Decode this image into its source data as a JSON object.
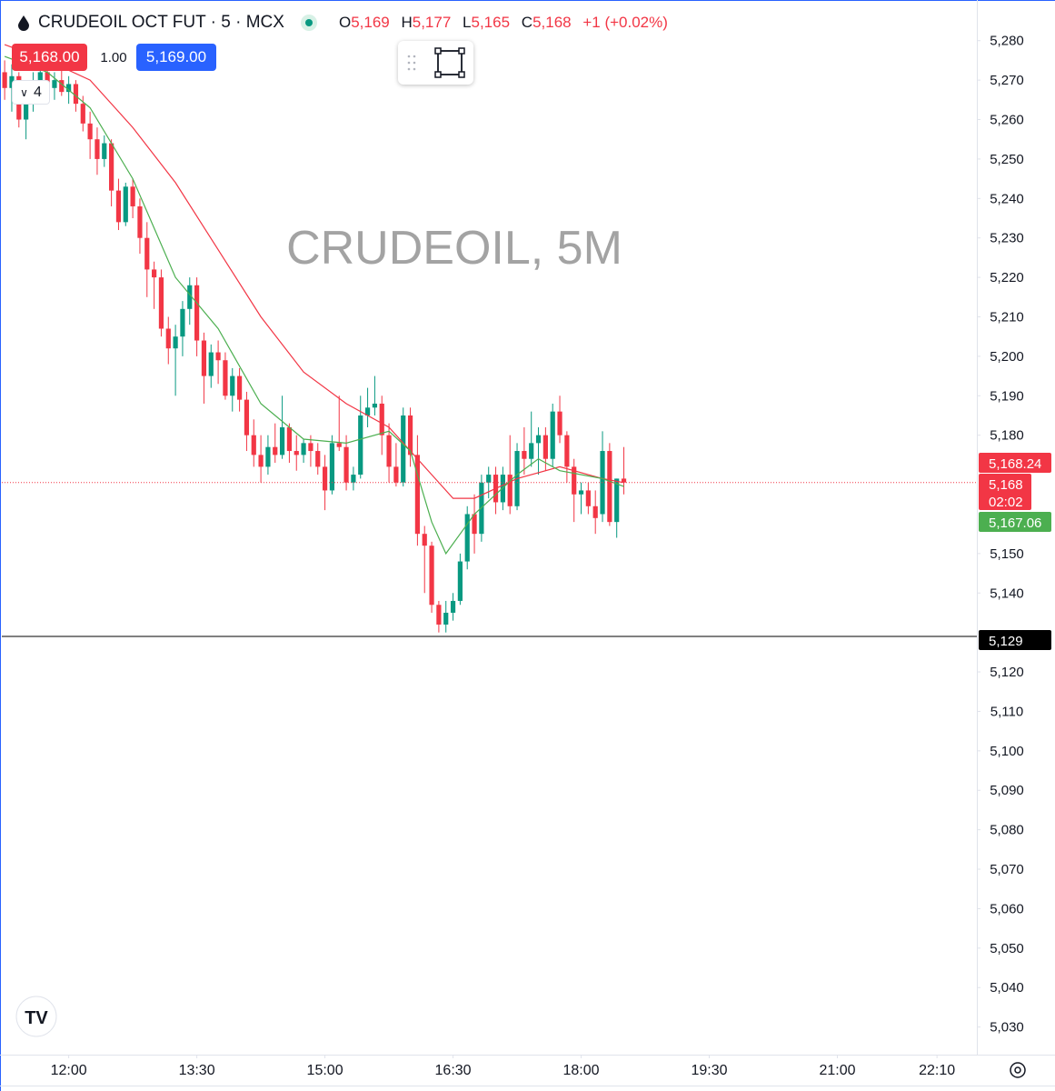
{
  "header": {
    "symbol": "CRUDEOIL OCT FUT · 5 · MCX",
    "ohlc": [
      {
        "label": "O",
        "value": "5,169"
      },
      {
        "label": "H",
        "value": "5,177"
      },
      {
        "label": "L",
        "value": "5,165"
      },
      {
        "label": "C",
        "value": "5,168"
      }
    ],
    "change": "+1 (+0.02%)"
  },
  "trade": {
    "sell": "5,168.00",
    "quantity": "1.00",
    "buy": "5,169.00"
  },
  "indicator_count": "4",
  "chart_data": {
    "type": "candlestick",
    "watermark": "CRUDEOIL, 5M",
    "x": [
      "11:15",
      "11:20",
      "11:25",
      "11:30",
      "11:35",
      "11:40",
      "11:45",
      "11:50",
      "11:55",
      "12:00",
      "12:05",
      "12:10",
      "12:15",
      "12:20",
      "12:25",
      "12:30",
      "12:35",
      "12:40",
      "12:45",
      "12:50",
      "12:55",
      "13:00",
      "13:05",
      "13:10",
      "13:15",
      "13:20",
      "13:25",
      "13:30",
      "13:35",
      "13:40",
      "13:45",
      "13:50",
      "13:55",
      "14:00",
      "14:05",
      "14:10",
      "14:15",
      "14:20",
      "14:25",
      "14:30",
      "14:35",
      "14:40",
      "14:45",
      "14:50",
      "14:55",
      "15:00",
      "15:05",
      "15:10",
      "15:15",
      "15:20",
      "15:25",
      "15:30",
      "15:35",
      "15:40",
      "15:45",
      "15:50",
      "15:55",
      "16:00",
      "16:05",
      "16:10",
      "16:15",
      "16:20",
      "16:25",
      "16:30",
      "16:35",
      "16:40",
      "16:45",
      "16:50",
      "16:55",
      "17:00",
      "17:05",
      "17:10",
      "17:15",
      "17:20",
      "17:25",
      "17:30",
      "17:35",
      "17:40",
      "17:45",
      "17:50",
      "17:55",
      "18:00",
      "18:05",
      "18:10",
      "18:15",
      "18:20",
      "18:25",
      "18:30"
    ],
    "open": [
      5272,
      5268,
      5271,
      5260,
      5264,
      5270,
      5272,
      5268,
      5270,
      5267,
      5269,
      5264,
      5259,
      5255,
      5250,
      5254,
      5242,
      5234,
      5243,
      5238,
      5230,
      5222,
      5220,
      5207,
      5202,
      5205,
      5212,
      5218,
      5204,
      5195,
      5201,
      5199,
      5190,
      5195,
      5189,
      5180,
      5175,
      5172,
      5177,
      5175,
      5182,
      5176,
      5175,
      5178,
      5176,
      5172,
      5166,
      5178,
      5177,
      5168,
      5170,
      5185,
      5187,
      5188,
      5180,
      5172,
      5168,
      5185,
      5175,
      5155,
      5152,
      5137,
      5132,
      5135,
      5138,
      5148,
      5160,
      5155,
      5168,
      5170,
      5163,
      5170,
      5162,
      5176,
      5174,
      5178,
      5180,
      5174,
      5186,
      5180,
      5172,
      5165,
      5166,
      5162,
      5160,
      5176,
      5158,
      5169
    ],
    "high": [
      5275,
      5274,
      5272,
      5266,
      5272,
      5275,
      5274,
      5272,
      5273,
      5271,
      5270,
      5266,
      5262,
      5258,
      5256,
      5255,
      5245,
      5244,
      5245,
      5240,
      5234,
      5224,
      5222,
      5210,
      5208,
      5214,
      5220,
      5220,
      5206,
      5203,
      5204,
      5201,
      5197,
      5197,
      5191,
      5184,
      5180,
      5180,
      5183,
      5190,
      5183,
      5180,
      5179,
      5180,
      5178,
      5175,
      5180,
      5190,
      5180,
      5172,
      5190,
      5192,
      5195,
      5190,
      5183,
      5178,
      5187,
      5187,
      5180,
      5157,
      5153,
      5138,
      5138,
      5140,
      5150,
      5162,
      5165,
      5170,
      5172,
      5172,
      5172,
      5180,
      5178,
      5182,
      5186,
      5182,
      5182,
      5188,
      5190,
      5181,
      5174,
      5168,
      5168,
      5166,
      5181,
      5178,
      5169,
      5177
    ],
    "low": [
      5265,
      5262,
      5258,
      5255,
      5262,
      5266,
      5266,
      5265,
      5266,
      5264,
      5262,
      5257,
      5250,
      5246,
      5248,
      5238,
      5232,
      5233,
      5235,
      5226,
      5215,
      5212,
      5205,
      5198,
      5190,
      5200,
      5208,
      5200,
      5188,
      5192,
      5193,
      5189,
      5186,
      5186,
      5176,
      5172,
      5168,
      5170,
      5173,
      5174,
      5173,
      5171,
      5173,
      5172,
      5170,
      5161,
      5165,
      5176,
      5166,
      5166,
      5169,
      5182,
      5185,
      5175,
      5168,
      5167,
      5167,
      5172,
      5152,
      5140,
      5135,
      5130,
      5130,
      5133,
      5137,
      5146,
      5150,
      5153,
      5164,
      5160,
      5161,
      5160,
      5161,
      5170,
      5172,
      5170,
      5171,
      5172,
      5178,
      5168,
      5158,
      5160,
      5160,
      5155,
      5158,
      5157,
      5154,
      5165
    ],
    "close": [
      5268,
      5271,
      5260,
      5264,
      5270,
      5272,
      5268,
      5270,
      5267,
      5269,
      5264,
      5259,
      5255,
      5250,
      5254,
      5242,
      5234,
      5243,
      5238,
      5230,
      5222,
      5220,
      5207,
      5202,
      5205,
      5212,
      5218,
      5204,
      5195,
      5201,
      5199,
      5190,
      5195,
      5189,
      5180,
      5175,
      5172,
      5177,
      5175,
      5182,
      5176,
      5175,
      5178,
      5176,
      5172,
      5166,
      5178,
      5177,
      5168,
      5170,
      5185,
      5187,
      5188,
      5180,
      5172,
      5168,
      5185,
      5175,
      5155,
      5152,
      5137,
      5132,
      5135,
      5138,
      5148,
      5160,
      5155,
      5168,
      5170,
      5163,
      5170,
      5162,
      5176,
      5174,
      5178,
      5180,
      5174,
      5186,
      5180,
      5172,
      5165,
      5166,
      5162,
      5159,
      5176,
      5158,
      5169,
      5168
    ],
    "up_color": "#089981",
    "down_color": "#f23645",
    "series": [
      {
        "color": "#f23645",
        "x": [
          "11:15",
          "11:45",
          "12:15",
          "12:45",
          "13:15",
          "13:45",
          "14:15",
          "14:45",
          "15:15",
          "15:45",
          "16:15",
          "16:30",
          "16:45",
          "17:15",
          "17:45",
          "18:15",
          "18:30"
        ],
        "values": [
          5279,
          5275,
          5270,
          5258,
          5244,
          5227,
          5210,
          5196,
          5188,
          5182,
          5170,
          5164,
          5164,
          5169,
          5172,
          5169,
          5168
        ]
      },
      {
        "color": "#4caf50",
        "x": [
          "11:15",
          "11:45",
          "12:15",
          "12:45",
          "13:15",
          "13:45",
          "14:15",
          "14:45",
          "15:15",
          "15:45",
          "16:00",
          "16:15",
          "16:25",
          "16:45",
          "17:15",
          "17:30",
          "17:45",
          "18:15",
          "18:30"
        ],
        "values": [
          5276,
          5272,
          5263,
          5245,
          5220,
          5207,
          5188,
          5179,
          5178,
          5181,
          5176,
          5158,
          5150,
          5160,
          5170,
          5174,
          5171,
          5169,
          5167
        ]
      }
    ],
    "price_lines": [
      {
        "value": 5168.24,
        "label": "5,168.24",
        "color": "#f23645"
      },
      {
        "value": 5168,
        "label": "5,168",
        "countdown": "02:02",
        "color": "#f23645"
      },
      {
        "value": 5167.06,
        "label": "5,167.06",
        "color": "#4caf50"
      },
      {
        "value": 5129,
        "label": "5,129",
        "color": "#000000"
      }
    ],
    "xlim": [
      "11:13",
      "22:38"
    ],
    "xticks": [
      "12:00",
      "13:30",
      "15:00",
      "16:30",
      "18:00",
      "19:30",
      "21:00",
      "22:10"
    ],
    "ylim": [
      5023,
      5288
    ],
    "yticks": [
      {
        "value": 5280,
        "label": "5,280"
      },
      {
        "value": 5270,
        "label": "5,270"
      },
      {
        "value": 5260,
        "label": "5,260"
      },
      {
        "value": 5250,
        "label": "5,250"
      },
      {
        "value": 5240,
        "label": "5,240"
      },
      {
        "value": 5230,
        "label": "5,230"
      },
      {
        "value": 5220,
        "label": "5,220"
      },
      {
        "value": 5210,
        "label": "5,210"
      },
      {
        "value": 5200,
        "label": "5,200"
      },
      {
        "value": 5190,
        "label": "5,190"
      },
      {
        "value": 5180,
        "label": "5,180"
      },
      {
        "value": 5150,
        "label": "5,150"
      },
      {
        "value": 5140,
        "label": "5,140"
      },
      {
        "value": 5120,
        "label": "5,120"
      },
      {
        "value": 5110,
        "label": "5,110"
      },
      {
        "value": 5100,
        "label": "5,100"
      },
      {
        "value": 5090,
        "label": "5,090"
      },
      {
        "value": 5080,
        "label": "5,080"
      },
      {
        "value": 5070,
        "label": "5,070"
      },
      {
        "value": 5060,
        "label": "5,060"
      },
      {
        "value": 5050,
        "label": "5,050"
      },
      {
        "value": 5040,
        "label": "5,040"
      },
      {
        "value": 5030,
        "label": "5,030"
      }
    ]
  }
}
